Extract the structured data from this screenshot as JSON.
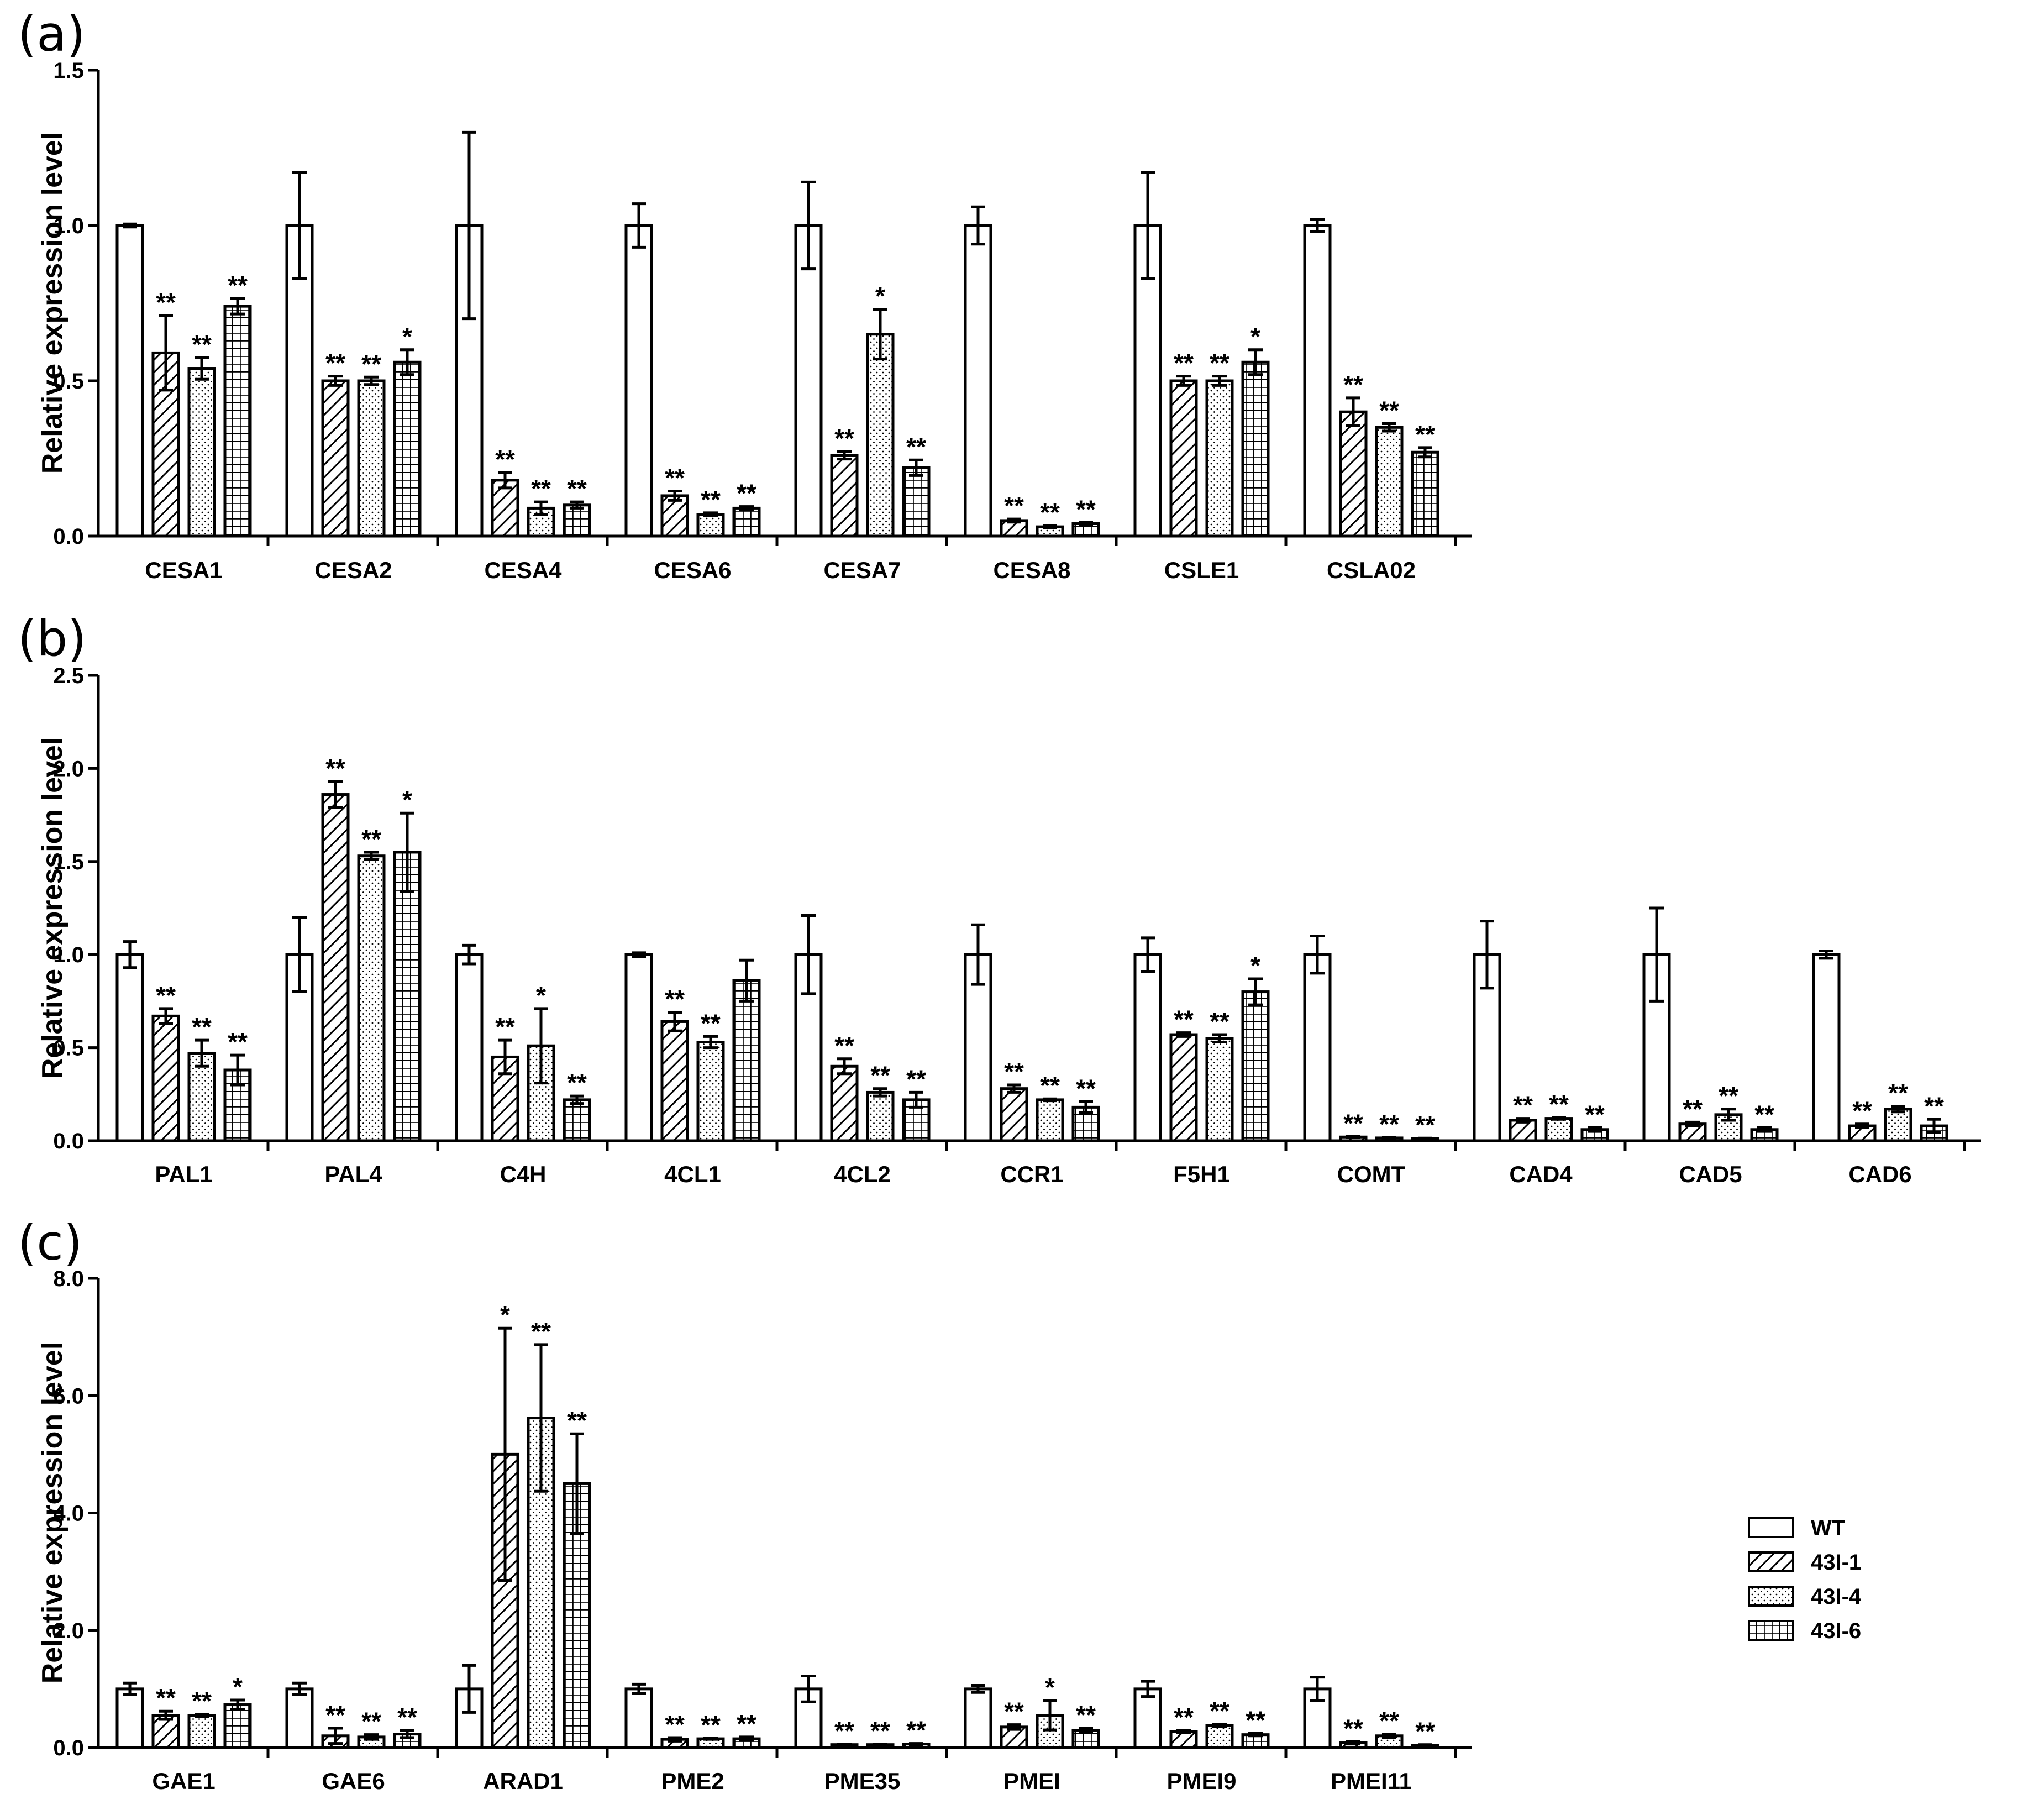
{
  "chart_data": [
    {
      "panel": "(a)",
      "type": "bar",
      "ylabel": "Relative expression level",
      "ylim": [
        0,
        1.5
      ],
      "yticks": [
        "0.0",
        "0.5",
        "1.0",
        "1.5"
      ],
      "categories": [
        "CESA1",
        "CESA2",
        "CESA4",
        "CESA6",
        "CESA7",
        "CESA8",
        "CSLE1",
        "CSLA02"
      ],
      "series": [
        {
          "name": "WT",
          "values": [
            1.0,
            1.0,
            1.0,
            1.0,
            1.0,
            1.0,
            1.0,
            1.0
          ],
          "errors": [
            0.005,
            0.17,
            0.3,
            0.07,
            0.14,
            0.06,
            0.17,
            0.02
          ],
          "sig": [
            "",
            "",
            "",
            "",
            "",
            "",
            "",
            ""
          ]
        },
        {
          "name": "43I-1",
          "values": [
            0.59,
            0.5,
            0.18,
            0.13,
            0.26,
            0.05,
            0.5,
            0.4
          ],
          "errors": [
            0.12,
            0.015,
            0.025,
            0.015,
            0.012,
            0.005,
            0.015,
            0.045
          ],
          "sig": [
            "**",
            "**",
            "**",
            "**",
            "**",
            "**",
            "**",
            "**"
          ]
        },
        {
          "name": "43I-4",
          "values": [
            0.54,
            0.5,
            0.09,
            0.07,
            0.65,
            0.03,
            0.5,
            0.35
          ],
          "errors": [
            0.035,
            0.012,
            0.02,
            0.005,
            0.08,
            0.004,
            0.015,
            0.012
          ],
          "sig": [
            "**",
            "**",
            "**",
            "**",
            "*",
            "**",
            "**",
            "**"
          ]
        },
        {
          "name": "43I-6",
          "values": [
            0.74,
            0.56,
            0.1,
            0.09,
            0.22,
            0.04,
            0.56,
            0.27
          ],
          "errors": [
            0.025,
            0.04,
            0.01,
            0.005,
            0.025,
            0.004,
            0.04,
            0.015
          ],
          "sig": [
            "**",
            "*",
            "**",
            "**",
            "**",
            "**",
            "*",
            "**"
          ]
        }
      ]
    },
    {
      "panel": "(b)",
      "type": "bar",
      "ylabel": "Relative expression level",
      "ylim": [
        0,
        2.5
      ],
      "yticks": [
        "0.0",
        "0.5",
        "1.0",
        "1.5",
        "2.0",
        "2.5"
      ],
      "categories": [
        "PAL1",
        "PAL4",
        "C4H",
        "4CL1",
        "4CL2",
        "CCR1",
        "F5H1",
        "COMT",
        "CAD4",
        "CAD5",
        "CAD6"
      ],
      "series": [
        {
          "name": "WT",
          "values": [
            1.0,
            1.0,
            1.0,
            1.0,
            1.0,
            1.0,
            1.0,
            1.0,
            1.0,
            1.0,
            1.0
          ],
          "errors": [
            0.07,
            0.2,
            0.05,
            0.01,
            0.21,
            0.16,
            0.09,
            0.1,
            0.18,
            0.25,
            0.02
          ],
          "sig": [
            "",
            "",
            "",
            "",
            "",
            "",
            "",
            "",
            "",
            "",
            ""
          ]
        },
        {
          "name": "43I-1",
          "values": [
            0.67,
            1.86,
            0.45,
            0.64,
            0.4,
            0.28,
            0.57,
            0.02,
            0.11,
            0.09,
            0.08
          ],
          "errors": [
            0.04,
            0.07,
            0.09,
            0.05,
            0.04,
            0.02,
            0.01,
            0.003,
            0.01,
            0.01,
            0.01
          ],
          "sig": [
            "**",
            "**",
            "**",
            "**",
            "**",
            "**",
            "**",
            "**",
            "**",
            "**",
            "**"
          ]
        },
        {
          "name": "43I-4",
          "values": [
            0.47,
            1.53,
            0.51,
            0.53,
            0.26,
            0.22,
            0.55,
            0.015,
            0.12,
            0.14,
            0.17
          ],
          "errors": [
            0.07,
            0.02,
            0.2,
            0.03,
            0.02,
            0.005,
            0.02,
            0.003,
            0.005,
            0.03,
            0.015
          ],
          "sig": [
            "**",
            "**",
            "*",
            "**",
            "**",
            "**",
            "**",
            "**",
            "**",
            "**",
            "**"
          ]
        },
        {
          "name": "43I-6",
          "values": [
            0.38,
            1.55,
            0.22,
            0.86,
            0.22,
            0.18,
            0.8,
            0.012,
            0.06,
            0.06,
            0.08
          ],
          "errors": [
            0.08,
            0.21,
            0.02,
            0.11,
            0.04,
            0.03,
            0.07,
            0.002,
            0.01,
            0.01,
            0.035
          ],
          "sig": [
            "**",
            "*",
            "**",
            "",
            "**",
            "**",
            "*",
            "**",
            "**",
            "**",
            "**"
          ]
        }
      ]
    },
    {
      "panel": "(c)",
      "type": "bar",
      "ylabel": "Relative expression level",
      "ylim": [
        0,
        8.0
      ],
      "yticks": [
        "0.0",
        "2.0",
        "4.0",
        "6.0",
        "8.0"
      ],
      "categories": [
        "GAE1",
        "GAE6",
        "ARAD1",
        "PME2",
        "PME35",
        "PMEI",
        "PMEI9",
        "PMEI11"
      ],
      "series": [
        {
          "name": "WT",
          "values": [
            1.0,
            1.0,
            1.0,
            1.0,
            1.0,
            1.0,
            1.0,
            1.0
          ],
          "errors": [
            0.1,
            0.1,
            0.4,
            0.08,
            0.22,
            0.06,
            0.13,
            0.2
          ],
          "sig": [
            "",
            "",
            "",
            "",
            "",
            "",
            "",
            ""
          ]
        },
        {
          "name": "43I-1",
          "values": [
            0.55,
            0.2,
            5.0,
            0.14,
            0.05,
            0.35,
            0.27,
            0.08
          ],
          "errors": [
            0.07,
            0.13,
            2.15,
            0.03,
            0.01,
            0.04,
            0.02,
            0.02
          ],
          "sig": [
            "**",
            "**",
            "*",
            "**",
            "**",
            "**",
            "**",
            "**"
          ]
        },
        {
          "name": "43I-4",
          "values": [
            0.55,
            0.18,
            5.62,
            0.15,
            0.05,
            0.55,
            0.38,
            0.2
          ],
          "errors": [
            0.02,
            0.04,
            1.25,
            0.01,
            0.01,
            0.25,
            0.02,
            0.03
          ],
          "sig": [
            "**",
            "**",
            "**",
            "**",
            "**",
            "*",
            "**",
            "**"
          ]
        },
        {
          "name": "43I-6",
          "values": [
            0.73,
            0.23,
            4.5,
            0.15,
            0.06,
            0.29,
            0.22,
            0.04
          ],
          "errors": [
            0.08,
            0.06,
            0.85,
            0.03,
            0.01,
            0.04,
            0.02,
            0.01
          ],
          "sig": [
            "*",
            "**",
            "**",
            "**",
            "**",
            "**",
            "**",
            "**"
          ]
        }
      ]
    }
  ],
  "legend": {
    "position": "right",
    "items": [
      {
        "label": "WT",
        "pattern": "open"
      },
      {
        "label": "43I-1",
        "pattern": "diagonal-hatch"
      },
      {
        "label": "43I-4",
        "pattern": "dotted"
      },
      {
        "label": "43I-6",
        "pattern": "grid"
      }
    ]
  }
}
